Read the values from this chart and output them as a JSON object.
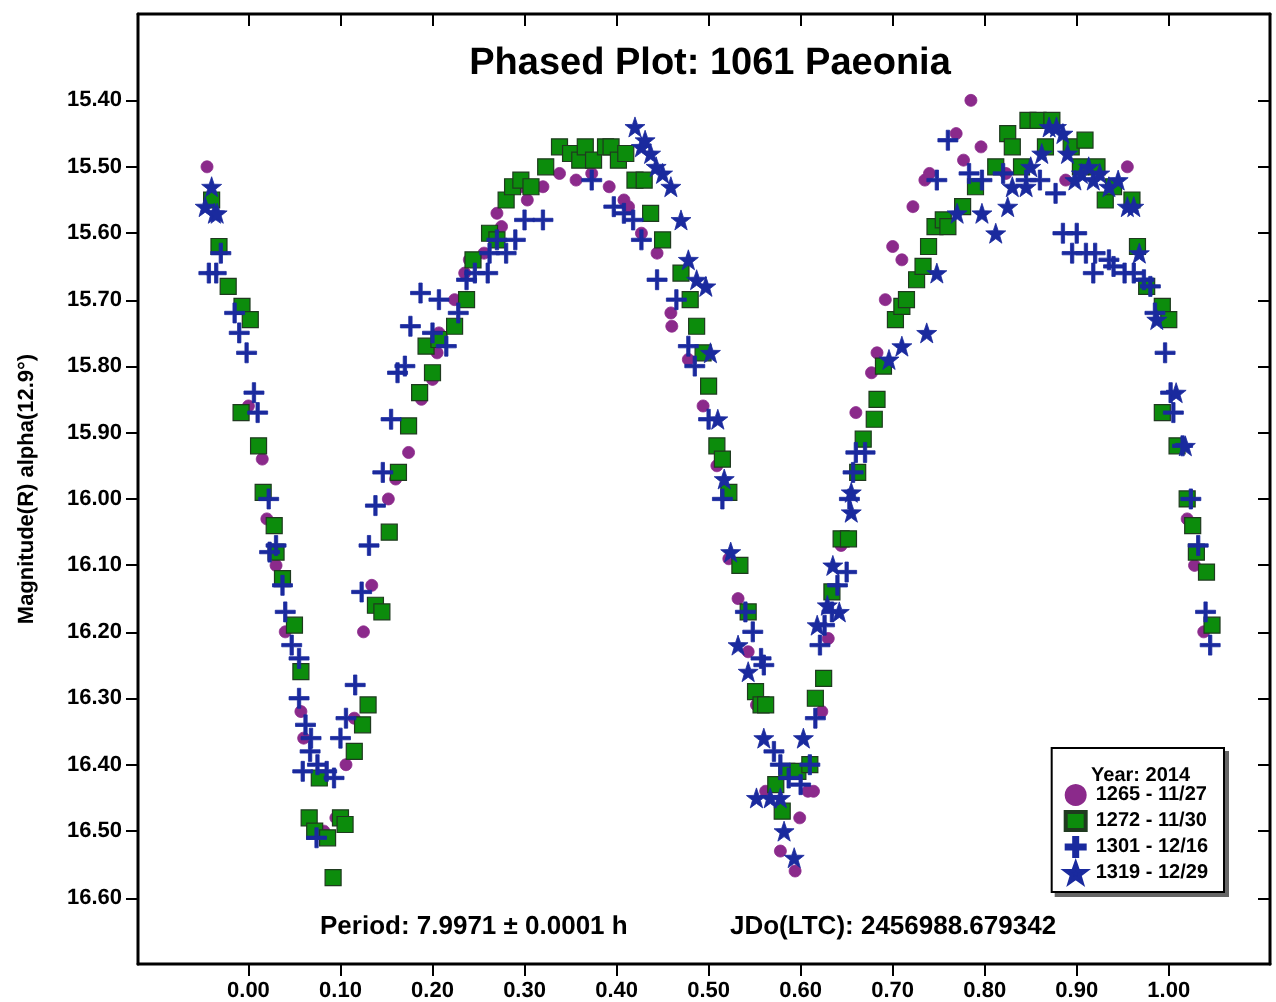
{
  "chart_data": {
    "type": "scatter",
    "title": "Phased Plot: 1061 Paeonia",
    "ylabel": "Magnitude(R) alpha(12.9°)",
    "legend_title": "Year: 2014",
    "legend": "bottom right",
    "annotations": [
      "Period: 7.9971 ± 0.0001 h",
      "JDo(LTC): 2456988.679342"
    ],
    "xlim": [
      -0.12,
      1.11
    ],
    "ylim": [
      16.7,
      15.27
    ],
    "xticks": [
      {
        "value": 0,
        "label": "0.00"
      },
      {
        "value": 0.1,
        "label": "0.10"
      },
      {
        "value": 0.2,
        "label": "0.20"
      },
      {
        "value": 0.3,
        "label": "0.30"
      },
      {
        "value": 0.4,
        "label": "0.40"
      },
      {
        "value": 0.5,
        "label": "0.50"
      },
      {
        "value": 0.6,
        "label": "0.60"
      },
      {
        "value": 0.7,
        "label": "0.70"
      },
      {
        "value": 0.8,
        "label": "0.80"
      },
      {
        "value": 0.9,
        "label": "0.90"
      },
      {
        "value": 1,
        "label": "1.00"
      }
    ],
    "yticks": [
      {
        "value": 15.4,
        "label": "15.40"
      },
      {
        "value": 15.5,
        "label": "15.50"
      },
      {
        "value": 15.6,
        "label": "15.60"
      },
      {
        "value": 15.7,
        "label": "15.70"
      },
      {
        "value": 15.8,
        "label": "15.80"
      },
      {
        "value": 15.9,
        "label": "15.90"
      },
      {
        "value": 16.0,
        "label": "16.00"
      },
      {
        "value": 16.1,
        "label": "16.10"
      },
      {
        "value": 16.2,
        "label": "16.20"
      },
      {
        "value": 16.3,
        "label": "16.30"
      },
      {
        "value": 16.4,
        "label": "16.40"
      },
      {
        "value": 16.5,
        "label": "16.50"
      },
      {
        "value": 16.6,
        "label": "16.60"
      }
    ],
    "series": [
      {
        "name": "1265 - 11/27",
        "color": "#8b2a8b",
        "marker": "circle",
        "x": [
          -0.045,
          0.0,
          0.015,
          0.02,
          0.03,
          0.04,
          0.057,
          0.06,
          0.082,
          0.095,
          0.106,
          0.115,
          0.125,
          0.134,
          0.152,
          0.16,
          0.174,
          0.188,
          0.2,
          0.205,
          0.207,
          0.224,
          0.235,
          0.24,
          0.256,
          0.27,
          0.275,
          0.298,
          0.303,
          0.32,
          0.338,
          0.356,
          0.373,
          0.392,
          0.408,
          0.413,
          0.427,
          0.444,
          0.459,
          0.46,
          0.478,
          0.494,
          0.509,
          0.522,
          0.532,
          0.543,
          0.552,
          0.562,
          0.578,
          0.594,
          0.599,
          0.608,
          0.614,
          0.623,
          0.63,
          0.644,
          0.66,
          0.677,
          0.683,
          0.692,
          0.7,
          0.71,
          0.722,
          0.735,
          0.74,
          0.769,
          0.777,
          0.785,
          0.796,
          0.823,
          0.888,
          0.955,
          1.02,
          1.028,
          1.038
        ],
        "values": [
          15.5,
          15.86,
          15.94,
          16.03,
          16.1,
          16.2,
          16.32,
          16.36,
          16.5,
          16.48,
          16.4,
          16.33,
          16.2,
          16.13,
          16.0,
          15.97,
          15.93,
          15.85,
          15.82,
          15.78,
          15.75,
          15.7,
          15.66,
          15.64,
          15.63,
          15.57,
          15.59,
          15.53,
          15.55,
          15.53,
          15.51,
          15.52,
          15.51,
          15.53,
          15.55,
          15.56,
          15.6,
          15.63,
          15.72,
          15.74,
          15.79,
          15.86,
          15.95,
          16.09,
          16.15,
          16.23,
          16.31,
          16.44,
          16.53,
          16.56,
          16.48,
          16.44,
          16.44,
          16.32,
          16.21,
          16.07,
          15.87,
          15.81,
          15.78,
          15.7,
          15.62,
          15.64,
          15.56,
          15.52,
          15.51,
          15.45,
          15.49,
          15.4,
          15.47,
          15.51,
          15.52,
          15.5,
          16.03,
          16.1,
          16.2
        ]
      },
      {
        "name": "1272 - 11/30",
        "color": "#0c8c0c",
        "marker": "square",
        "x": [
          -0.04,
          -0.032,
          -0.022,
          -0.007,
          0.002,
          -0.008,
          0.011,
          0.016,
          0.028,
          0.03,
          0.037,
          0.05,
          0.057,
          0.066,
          0.072,
          0.077,
          0.086,
          0.092,
          0.1,
          0.105,
          0.115,
          0.124,
          0.13,
          0.138,
          0.145,
          0.153,
          0.163,
          0.174,
          0.186,
          0.2,
          0.193,
          0.207,
          0.224,
          0.237,
          0.244,
          0.262,
          0.27,
          0.28,
          0.287,
          0.296,
          0.307,
          0.323,
          0.338,
          0.35,
          0.36,
          0.366,
          0.375,
          0.388,
          0.394,
          0.402,
          0.41,
          0.42,
          0.43,
          0.437,
          0.45,
          0.47,
          0.48,
          0.487,
          0.494,
          0.5,
          0.509,
          0.515,
          0.522,
          0.534,
          0.543,
          0.551,
          0.557,
          0.562,
          0.573,
          0.58,
          0.585,
          0.597,
          0.61,
          0.616,
          0.625,
          0.634,
          0.644,
          0.652,
          0.662,
          0.668,
          0.68,
          0.683,
          0.69,
          0.703,
          0.71,
          0.715,
          0.726,
          0.733,
          0.739,
          0.746,
          0.755,
          0.76,
          0.776,
          0.79,
          0.812,
          0.825,
          0.83,
          0.84,
          0.847,
          0.858,
          0.866,
          0.873,
          0.894,
          0.904,
          0.909,
          0.922,
          0.931,
          0.94,
          0.96,
          0.966,
          0.976,
          0.993,
          1.0,
          0.993,
          1.009,
          1.02,
          1.026,
          1.03,
          1.041,
          1.047
        ],
        "values": [
          15.55,
          15.62,
          15.68,
          15.71,
          15.73,
          15.87,
          15.92,
          15.99,
          16.04,
          16.08,
          16.12,
          16.19,
          16.26,
          16.48,
          16.5,
          16.42,
          16.51,
          16.57,
          16.48,
          16.49,
          16.38,
          16.34,
          16.31,
          16.16,
          16.17,
          16.05,
          15.96,
          15.89,
          15.84,
          15.81,
          15.77,
          15.76,
          15.74,
          15.7,
          15.64,
          15.6,
          15.61,
          15.55,
          15.53,
          15.52,
          15.53,
          15.5,
          15.47,
          15.48,
          15.49,
          15.47,
          15.49,
          15.47,
          15.47,
          15.49,
          15.48,
          15.52,
          15.52,
          15.57,
          15.61,
          15.66,
          15.7,
          15.74,
          15.78,
          15.83,
          15.92,
          15.94,
          15.99,
          16.1,
          16.17,
          16.29,
          16.31,
          16.31,
          16.43,
          16.47,
          16.41,
          16.41,
          16.4,
          16.3,
          16.27,
          16.14,
          16.06,
          16.06,
          15.96,
          15.91,
          15.88,
          15.85,
          15.8,
          15.73,
          15.71,
          15.7,
          15.67,
          15.65,
          15.62,
          15.59,
          15.58,
          15.59,
          15.56,
          15.53,
          15.5,
          15.45,
          15.47,
          15.5,
          15.43,
          15.43,
          15.47,
          15.43,
          15.47,
          15.5,
          15.46,
          15.5,
          15.55,
          15.53,
          15.55,
          15.62,
          15.68,
          15.71,
          15.73,
          15.87,
          15.92,
          16.0,
          16.04,
          16.08,
          16.11,
          16.19
        ]
      },
      {
        "name": "1301 - 12/16",
        "color": "#1a2a9e",
        "marker": "cross",
        "x": [
          -0.043,
          -0.035,
          -0.03,
          -0.015,
          -0.01,
          -0.002,
          0.006,
          0.01,
          0.022,
          0.023,
          0.03,
          0.037,
          0.04,
          0.047,
          0.055,
          0.055,
          0.062,
          0.067,
          0.068,
          0.059,
          0.075,
          0.085,
          0.093,
          0.1,
          0.106,
          0.074,
          0.116,
          0.123,
          0.131,
          0.138,
          0.146,
          0.155,
          0.162,
          0.17,
          0.176,
          0.187,
          0.2,
          0.207,
          0.215,
          0.228,
          0.237,
          0.246,
          0.26,
          0.262,
          0.27,
          0.28,
          0.29,
          0.3,
          0.32,
          0.373,
          0.397,
          0.408,
          0.418,
          0.427,
          0.444,
          0.465,
          0.478,
          0.485,
          0.5,
          0.515,
          0.54,
          0.548,
          0.557,
          0.56,
          0.571,
          0.578,
          0.587,
          0.6,
          0.61,
          0.616,
          0.621,
          0.626,
          0.634,
          0.64,
          0.65,
          0.653,
          0.657,
          0.66,
          0.67,
          0.748,
          0.76,
          0.783,
          0.797,
          0.82,
          0.845,
          0.86,
          0.877,
          0.885,
          0.9,
          0.895,
          0.91,
          0.92,
          0.918,
          0.935,
          0.94,
          0.952,
          0.962,
          0.973,
          0.98,
          0.985,
          0.996,
          1.002,
          1.005,
          1.015,
          1.024,
          1.032,
          1.04,
          1.045
        ],
        "values": [
          15.66,
          15.66,
          15.63,
          15.72,
          15.75,
          15.78,
          15.84,
          15.87,
          16.0,
          16.08,
          16.07,
          16.13,
          16.17,
          16.22,
          16.24,
          16.3,
          16.34,
          16.38,
          16.36,
          16.41,
          16.4,
          16.41,
          16.42,
          16.36,
          16.33,
          16.51,
          16.28,
          16.14,
          16.07,
          16.01,
          15.96,
          15.88,
          15.81,
          15.8,
          15.74,
          15.69,
          15.75,
          15.7,
          15.77,
          15.72,
          15.67,
          15.66,
          15.66,
          15.63,
          15.61,
          15.63,
          15.61,
          15.58,
          15.58,
          15.52,
          15.56,
          15.57,
          15.58,
          15.61,
          15.67,
          15.7,
          15.77,
          15.8,
          15.88,
          16.0,
          16.17,
          16.2,
          16.24,
          16.25,
          16.38,
          16.4,
          16.42,
          16.43,
          16.4,
          16.33,
          16.22,
          16.19,
          16.17,
          16.13,
          16.11,
          16.0,
          15.96,
          15.93,
          15.93,
          15.52,
          15.46,
          15.51,
          15.52,
          15.51,
          15.52,
          15.52,
          15.54,
          15.6,
          15.6,
          15.63,
          15.63,
          15.63,
          15.66,
          15.64,
          15.65,
          15.66,
          15.66,
          15.67,
          15.68,
          15.72,
          15.78,
          15.84,
          15.87,
          15.92,
          16.0,
          16.07,
          16.17,
          16.22
        ]
      },
      {
        "name": "1319 - 12/29",
        "color": "#1a2a9e",
        "marker": "star",
        "x": [
          -0.047,
          -0.04,
          -0.037,
          -0.034,
          0.42,
          0.427,
          0.431,
          0.437,
          0.443,
          0.45,
          0.459,
          0.47,
          0.478,
          0.487,
          0.497,
          0.502,
          0.51,
          0.517,
          0.524,
          0.532,
          0.543,
          0.552,
          0.56,
          0.567,
          0.578,
          0.582,
          0.593,
          0.603,
          0.618,
          0.629,
          0.635,
          0.642,
          0.655,
          0.655,
          0.696,
          0.71,
          0.737,
          0.748,
          0.77,
          0.797,
          0.812,
          0.825,
          0.83,
          0.845,
          0.85,
          0.862,
          0.87,
          0.878,
          0.885,
          0.89,
          0.898,
          0.905,
          0.913,
          0.918,
          0.925,
          0.935,
          0.945,
          0.955,
          0.962,
          0.968,
          0.987,
          1.008,
          1.018
        ],
        "values": [
          15.56,
          15.53,
          15.57,
          15.57,
          15.44,
          15.47,
          15.46,
          15.48,
          15.5,
          15.51,
          15.53,
          15.58,
          15.64,
          15.67,
          15.68,
          15.78,
          15.88,
          15.97,
          16.08,
          16.22,
          16.26,
          16.45,
          16.36,
          16.45,
          16.45,
          16.5,
          16.54,
          16.36,
          16.19,
          16.16,
          16.1,
          16.17,
          16.02,
          15.99,
          15.79,
          15.77,
          15.75,
          15.66,
          15.57,
          15.57,
          15.6,
          15.56,
          15.53,
          15.53,
          15.5,
          15.48,
          15.44,
          15.44,
          15.45,
          15.48,
          15.52,
          15.51,
          15.5,
          15.52,
          15.51,
          15.53,
          15.52,
          15.56,
          15.56,
          15.63,
          15.73,
          15.84,
          15.92
        ]
      }
    ]
  }
}
